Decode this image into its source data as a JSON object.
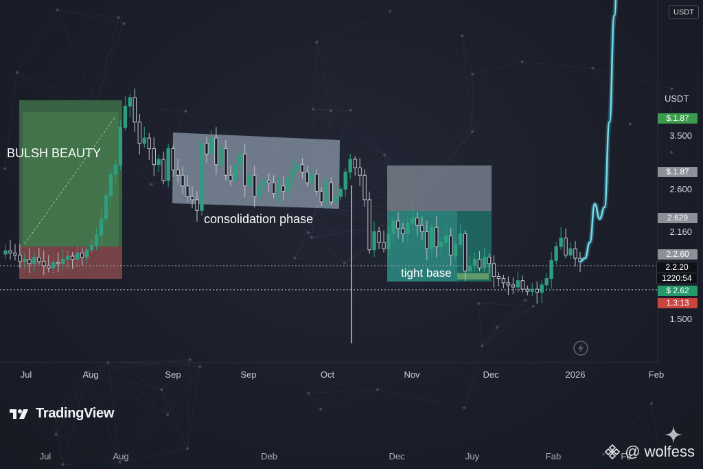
{
  "top_unit_badge": "USDT",
  "currency_label": "USDT",
  "annotations": [
    "BULSH BEAUTY",
    "consolidation phase",
    "tight base"
  ],
  "brand": "TradingView",
  "watermark": "@ wolfess",
  "colors": {
    "up": "#2e9e7f",
    "down": "#c2c5ce",
    "projection": "#5fd3e8",
    "long_zone": "#3c6a45",
    "stop_zone": "#7a4448",
    "box_gray": "#8a97a8",
    "target_box": "#2d8c84"
  },
  "icons": [
    "lightning-icon",
    "tradingview-logo-icon",
    "binance-diamond-icon",
    "sparkle-icon"
  ],
  "chart_data": {
    "type": "candlestick",
    "y_axis_labels": [
      "3.500",
      "2.600",
      "2.160",
      "1.500"
    ],
    "price_badges": [
      {
        "text": "$.1.87",
        "color": "#3a9c4d"
      },
      {
        "text": "$.1.87",
        "color": "#8d9099"
      },
      {
        "text": "2.629",
        "color": "#8d9099"
      },
      {
        "text": "2.2.60",
        "color": "#8d9099"
      },
      {
        "text": "2.2.20",
        "color": "#0f1117"
      },
      {
        "text": "1220:54",
        "color": "#0f1117"
      },
      {
        "text": "$ 2.62",
        "color": "#26996b"
      },
      {
        "text": "1.3:13",
        "color": "#c9433f"
      }
    ],
    "x_axis_labels": [
      "Jul",
      "Aug",
      "Sep",
      "Sep",
      "Oct",
      "Nov",
      "Dec",
      "2026",
      "Feb"
    ],
    "x_axis_labels_secondary": [
      "Jul",
      "Aug",
      "Deb",
      "Dec",
      "Juy",
      "Fab",
      "Fe"
    ],
    "series": [
      {
        "kind": "candles",
        "y": [
          2.14,
          2.12,
          2.1,
          2.04,
          2.06,
          2.02,
          2.08,
          2.04,
          2.0,
          1.98,
          2.03,
          2.02,
          2.06,
          2.09,
          2.06,
          2.12,
          2.08,
          2.15,
          2.19,
          2.29,
          2.44,
          2.66,
          2.86,
          2.95,
          3.3,
          3.5,
          3.58,
          3.35,
          3.15,
          3.2,
          3.1,
          2.95,
          3.0,
          2.8,
          3.1,
          2.9,
          2.85,
          2.75,
          2.65,
          2.62,
          2.52,
          3.15,
          3.05,
          3.2,
          2.95,
          3.1,
          2.85,
          2.8,
          2.95,
          3.05,
          2.75,
          2.85,
          2.65,
          2.75,
          2.8,
          2.78,
          2.68,
          2.75,
          2.7,
          2.82,
          2.9,
          2.95,
          2.88,
          2.78,
          2.86,
          2.7,
          2.6,
          2.78,
          2.6,
          2.65,
          2.72,
          2.88,
          3.0,
          2.92,
          2.85,
          2.62,
          2.15,
          2.32,
          2.22,
          2.16,
          2.3,
          2.42,
          2.35,
          2.3,
          2.4,
          2.45,
          2.38,
          2.32,
          2.16,
          2.36,
          2.18,
          2.22,
          2.28,
          2.1,
          2.2,
          2.3,
          1.95,
          2.0,
          2.06,
          1.98,
          2.08,
          2.02,
          1.9,
          1.88,
          1.84,
          1.82,
          1.8,
          1.86,
          1.78,
          1.76,
          1.78,
          1.75,
          1.82,
          1.88,
          2.05,
          2.18,
          2.26,
          2.1,
          2.16,
          2.07,
          2.04
        ]
      },
      {
        "kind": "projection",
        "y": [
          2.04,
          2.07,
          2.22,
          2.58,
          2.44,
          2.55,
          3.35,
          4.35,
          5.55
        ]
      }
    ]
  }
}
